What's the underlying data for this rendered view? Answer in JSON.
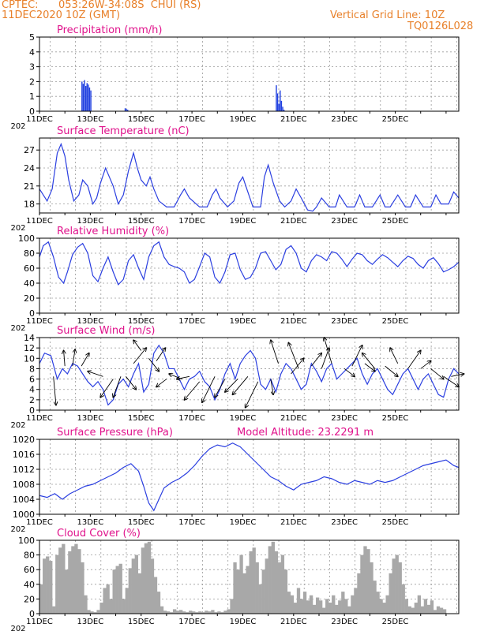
{
  "header": {
    "source": "CPTEC:",
    "location": "053:26W-34:08S  CHUI (RS)",
    "run": "11DEC2020 10Z (GMT)",
    "vertical_grid": "Vertical Grid Line: 10Z",
    "model": "TQ0126L028"
  },
  "colors": {
    "header": "#e8802a",
    "panel_title": "#e0138c",
    "line": "#2b3fe0",
    "bar": "#2040e0",
    "cloud": "#a8a8a8",
    "grid": "#9a9a9a"
  },
  "x_tick_labels": [
    "11DEC",
    "13DEC",
    "15DEC",
    "17DEC",
    "19DEC",
    "21DEC",
    "23DEC",
    "25DEC"
  ],
  "partial_year_label": "202",
  "chart_data": [
    {
      "type": "bar",
      "title": "Precipitation (mm/h)",
      "ylim": [
        0,
        5
      ],
      "yticks": [
        "0",
        "1",
        "2",
        "3",
        "4",
        "5"
      ],
      "x_unit": "days from 11DEC 00Z",
      "x": [
        1.65,
        1.7,
        1.75,
        1.8,
        1.85,
        1.9,
        1.95,
        2.0,
        3.35,
        3.4,
        3.45,
        9.3,
        9.35,
        9.4,
        9.45,
        9.5,
        9.55,
        9.6
      ],
      "values": [
        2.0,
        1.85,
        2.1,
        1.7,
        1.9,
        1.8,
        1.6,
        1.4,
        0.2,
        0.15,
        0.1,
        1.75,
        1.2,
        0.5,
        1.4,
        0.7,
        0.3,
        0.1
      ]
    },
    {
      "type": "line",
      "title": "Surface Temperature (nC)",
      "ylim": [
        16.5,
        29
      ],
      "yticks": [
        "18",
        "21",
        "24",
        "27"
      ],
      "x": [
        0,
        0.3,
        0.5,
        0.7,
        0.85,
        1.0,
        1.15,
        1.35,
        1.55,
        1.7,
        1.9,
        2.1,
        2.25,
        2.4,
        2.6,
        2.9,
        3.1,
        3.3,
        3.5,
        3.7,
        3.85,
        4.0,
        4.2,
        4.35,
        4.5,
        4.7,
        5.0,
        5.3,
        5.55,
        5.7,
        5.9,
        6.3,
        6.6,
        6.8,
        6.95,
        7.1,
        7.4,
        7.65,
        7.85,
        8.0,
        8.2,
        8.4,
        8.7,
        8.85,
        9.0,
        9.2,
        9.45,
        9.65,
        9.9,
        10.1,
        10.3,
        10.55,
        10.75,
        10.9,
        11.1,
        11.4,
        11.65,
        11.8,
        12.1,
        12.4,
        12.6,
        12.8,
        13.1,
        13.4,
        13.6,
        13.8,
        14.1,
        14.4,
        14.6,
        14.8,
        15.1,
        15.4,
        15.6,
        15.8,
        16.1,
        16.3,
        16.5
      ],
      "values": [
        20.5,
        18.5,
        20.5,
        26.5,
        28,
        26,
        22,
        18.5,
        19.5,
        22,
        21,
        18,
        19,
        21.5,
        24,
        21,
        18,
        19.5,
        23.5,
        26.5,
        24,
        22,
        21,
        22.5,
        20.5,
        18.5,
        17.5,
        17.5,
        19.5,
        20.5,
        19,
        17.5,
        17.5,
        19.5,
        20.5,
        19,
        17.5,
        18.5,
        21.5,
        22.5,
        20,
        17.5,
        17.5,
        22.5,
        24.5,
        21.5,
        18.5,
        17.5,
        18.5,
        20.5,
        19,
        17,
        16.8,
        17.5,
        19,
        17.5,
        17.5,
        19.5,
        17.5,
        17.5,
        19.5,
        17.5,
        17.5,
        19.5,
        17.5,
        17.5,
        19.5,
        17.5,
        17.5,
        19.5,
        17.5,
        17.5,
        19.5,
        18,
        18,
        20,
        19
      ]
    },
    {
      "type": "line",
      "title": "Relative Humidity (%)",
      "ylim": [
        0,
        100
      ],
      "yticks": [
        "0",
        "20",
        "40",
        "60",
        "80",
        "100"
      ],
      "x": [
        0,
        0.15,
        0.35,
        0.55,
        0.75,
        0.95,
        1.1,
        1.3,
        1.5,
        1.7,
        1.9,
        2.1,
        2.3,
        2.5,
        2.7,
        2.9,
        3.1,
        3.3,
        3.5,
        3.7,
        3.9,
        4.1,
        4.3,
        4.5,
        4.7,
        4.9,
        5.1,
        5.3,
        5.5,
        5.7,
        5.9,
        6.1,
        6.3,
        6.5,
        6.7,
        6.9,
        7.1,
        7.3,
        7.5,
        7.7,
        7.9,
        8.1,
        8.3,
        8.5,
        8.7,
        8.9,
        9.1,
        9.3,
        9.5,
        9.7,
        9.9,
        10.1,
        10.3,
        10.5,
        10.7,
        10.9,
        11.1,
        11.3,
        11.5,
        11.7,
        11.9,
        12.1,
        12.3,
        12.5,
        12.7,
        12.9,
        13.1,
        13.3,
        13.5,
        13.7,
        13.9,
        14.1,
        14.3,
        14.5,
        14.7,
        14.9,
        15.1,
        15.3,
        15.5,
        15.7,
        15.9,
        16.1,
        16.3,
        16.5
      ],
      "values": [
        75,
        90,
        95,
        75,
        48,
        40,
        55,
        78,
        88,
        93,
        80,
        50,
        42,
        60,
        75,
        55,
        38,
        45,
        70,
        78,
        60,
        45,
        75,
        90,
        95,
        75,
        65,
        62,
        60,
        55,
        40,
        45,
        62,
        80,
        75,
        48,
        40,
        55,
        78,
        80,
        58,
        45,
        48,
        60,
        80,
        82,
        70,
        58,
        65,
        85,
        90,
        80,
        60,
        55,
        70,
        78,
        75,
        70,
        82,
        80,
        72,
        62,
        72,
        80,
        78,
        70,
        65,
        72,
        78,
        74,
        68,
        62,
        70,
        76,
        73,
        65,
        60,
        70,
        74,
        66,
        55,
        58,
        62,
        68
      ]
    },
    {
      "type": "line",
      "title": "Surface Wind (m/s)",
      "ylim": [
        0,
        14
      ],
      "yticks": [
        "0",
        "2",
        "4",
        "6",
        "8",
        "10",
        "12",
        "14"
      ],
      "x": [
        0,
        0.2,
        0.45,
        0.7,
        0.9,
        1.1,
        1.3,
        1.5,
        1.7,
        1.9,
        2.1,
        2.3,
        2.5,
        2.7,
        2.9,
        3.1,
        3.3,
        3.5,
        3.7,
        3.9,
        4.1,
        4.3,
        4.5,
        4.7,
        4.9,
        5.1,
        5.3,
        5.5,
        5.7,
        5.9,
        6.1,
        6.3,
        6.5,
        6.7,
        6.9,
        7.1,
        7.3,
        7.5,
        7.7,
        7.9,
        8.1,
        8.3,
        8.5,
        8.7,
        8.9,
        9.1,
        9.3,
        9.5,
        9.7,
        9.9,
        10.1,
        10.3,
        10.5,
        10.7,
        10.9,
        11.1,
        11.3,
        11.5,
        11.7,
        11.9,
        12.1,
        12.3,
        12.5,
        12.7,
        12.9,
        13.1,
        13.3,
        13.5,
        13.7,
        13.9,
        14.1,
        14.3,
        14.5,
        14.7,
        14.9,
        15.1,
        15.3,
        15.5,
        15.7,
        15.9,
        16.1,
        16.3,
        16.5
      ],
      "values": [
        9,
        11,
        10.5,
        6,
        8,
        7,
        9,
        8.5,
        7,
        5.5,
        4.5,
        5.5,
        4,
        1,
        2,
        5,
        6,
        4.5,
        7,
        9,
        3.5,
        5,
        11,
        12.5,
        11,
        8,
        8,
        6,
        4,
        6,
        6.5,
        7.5,
        5.5,
        4.5,
        2,
        4,
        7,
        9,
        6,
        9,
        10.5,
        11.5,
        10,
        5,
        4,
        6,
        3.5,
        7,
        9,
        8,
        6,
        4,
        5,
        9,
        7.5,
        5.5,
        8,
        9,
        6,
        7,
        8,
        9,
        10,
        7,
        5,
        7,
        8,
        6,
        4,
        3,
        5,
        7,
        8,
        6,
        4,
        6,
        7,
        5,
        3,
        2.5,
        6,
        8,
        7
      ]
    },
    {
      "type": "line",
      "title": "Surface Pressure (hPa)",
      "annotation": "Model Altitude: 23.2291  m",
      "ylim": [
        1000,
        1020
      ],
      "yticks": [
        "1000",
        "1004",
        "1008",
        "1012",
        "1016",
        "1020"
      ],
      "x": [
        0,
        0.3,
        0.6,
        0.9,
        1.2,
        1.5,
        1.8,
        2.1,
        2.4,
        2.7,
        3.0,
        3.3,
        3.6,
        3.9,
        4.1,
        4.3,
        4.5,
        4.7,
        4.9,
        5.2,
        5.5,
        5.8,
        6.1,
        6.4,
        6.7,
        7.0,
        7.3,
        7.6,
        7.9,
        8.2,
        8.5,
        8.8,
        9.1,
        9.4,
        9.7,
        10.0,
        10.3,
        10.6,
        10.9,
        11.2,
        11.5,
        11.8,
        12.1,
        12.4,
        12.7,
        13.0,
        13.3,
        13.6,
        13.9,
        14.2,
        14.5,
        14.8,
        15.1,
        15.4,
        15.7,
        16.0,
        16.3,
        16.5
      ],
      "values": [
        1005,
        1004.5,
        1005.5,
        1004,
        1005.5,
        1006.5,
        1007.5,
        1008,
        1009,
        1010,
        1011,
        1012.5,
        1013.5,
        1011.5,
        1007.5,
        1003,
        1001,
        1004,
        1007,
        1008.5,
        1009.5,
        1011,
        1013,
        1015.5,
        1017.5,
        1018.5,
        1018,
        1019,
        1018,
        1016,
        1014,
        1012,
        1010,
        1009,
        1007.5,
        1006.5,
        1008,
        1008.5,
        1009,
        1010,
        1009.5,
        1008.5,
        1008,
        1009,
        1008.5,
        1008,
        1009,
        1008.5,
        1009,
        1010,
        1011,
        1012,
        1013,
        1013.5,
        1014,
        1014.5,
        1013,
        1012.5
      ]
    },
    {
      "type": "bar",
      "title": "Cloud Cover (%)",
      "ylim": [
        0,
        100
      ],
      "yticks": [
        "0",
        "20",
        "40",
        "60",
        "80",
        "100"
      ],
      "x_step": 0.125,
      "values": [
        40,
        75,
        78,
        72,
        10,
        80,
        90,
        95,
        60,
        85,
        92,
        95,
        88,
        70,
        25,
        5,
        3,
        2,
        5,
        15,
        35,
        40,
        20,
        60,
        65,
        68,
        20,
        35,
        62,
        75,
        80,
        55,
        90,
        96,
        98,
        75,
        50,
        30,
        10,
        4,
        3,
        2,
        6,
        4,
        5,
        3,
        2,
        4,
        3,
        2,
        3,
        2,
        4,
        3,
        5,
        2,
        3,
        2,
        4,
        6,
        20,
        70,
        60,
        80,
        55,
        65,
        85,
        90,
        70,
        40,
        60,
        75,
        92,
        98,
        85,
        70,
        80,
        60,
        30,
        25,
        15,
        35,
        20,
        30,
        18,
        25,
        12,
        22,
        18,
        8,
        20,
        15,
        25,
        12,
        18,
        30,
        20,
        10,
        25,
        35,
        55,
        80,
        92,
        88,
        70,
        45,
        30,
        20,
        15,
        25,
        55,
        75,
        80,
        70,
        40,
        20,
        10,
        8,
        15,
        25,
        10,
        20,
        12,
        18,
        5,
        10,
        8,
        6
      ]
    }
  ],
  "wind_vectors": {
    "x": [
      0.55,
      1.0,
      1.3,
      1.65,
      2.5,
      2.9,
      3.2,
      3.4,
      3.7,
      4.0,
      4.3,
      4.6,
      5.0,
      5.6,
      5.9,
      6.3,
      6.9,
      7.3,
      7.8,
      8.2,
      8.6,
      9.1,
      9.4,
      9.9,
      10.2,
      10.7,
      11.1,
      11.5,
      12.0,
      12.3,
      12.8,
      13.2,
      13.6,
      14.1,
      14.5,
      15.0,
      15.4,
      15.9,
      16.2
    ],
    "y": [
      6.5,
      8.5,
      8.5,
      8.5,
      6.5,
      6,
      6.5,
      6.5,
      9,
      11.5,
      10,
      9.5,
      6,
      6,
      6.5,
      5.5,
      6.5,
      6,
      6,
      6.5,
      5.5,
      6,
      9,
      7,
      8,
      8.5,
      8,
      9,
      8,
      8.5,
      9,
      8,
      8.5,
      9,
      8,
      8,
      8,
      6.5,
      6.5
    ],
    "dx": [
      0.1,
      -0.05,
      0.1,
      0.3,
      -0.6,
      -0.5,
      -0.3,
      0.4,
      0.5,
      -0.3,
      0.4,
      0.35,
      -0.4,
      -0.5,
      -0.5,
      -0.6,
      -0.5,
      -0.4,
      -0.5,
      -0.6,
      -0.5,
      0.1,
      -0.3,
      0.5,
      -0.4,
      0.4,
      0.3,
      -0.3,
      0.4,
      0.4,
      0.4,
      -0.5,
      0.5,
      -0.3,
      0.5,
      0.4,
      0.5,
      0.6,
      0.5
    ],
    "dy": [
      -5.5,
      3,
      3.2,
      2.5,
      1,
      -3.5,
      -4,
      -2.5,
      3,
      2,
      -2.5,
      2.5,
      -1.5,
      1,
      -0.5,
      -3.5,
      -5,
      -3.5,
      -2.5,
      -3.5,
      -5,
      -3,
      4.5,
      3,
      5,
      2.5,
      4,
      5,
      -1.5,
      4,
      -1.5,
      3,
      -2,
      3,
      3.5,
      1.5,
      -2,
      -2,
      0.5
    ]
  }
}
